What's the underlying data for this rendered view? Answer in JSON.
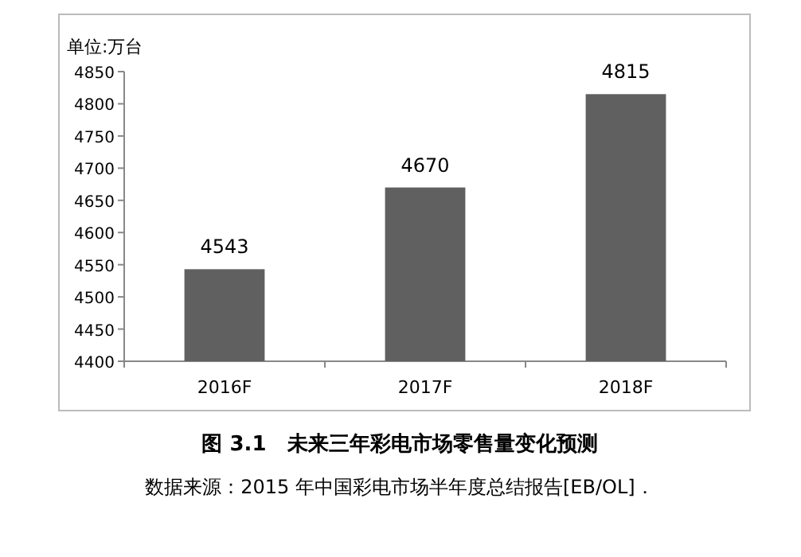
{
  "chart_data": {
    "type": "bar",
    "title": "图 3.1　未来三年彩电市场零售量变化预测",
    "ylabel": "单位:万台",
    "categories": [
      "2016F",
      "2017F",
      "2018F"
    ],
    "values": [
      4543,
      4670,
      4815
    ],
    "color": "#606060",
    "ylim": [
      4400,
      4850
    ],
    "yticks": [
      4400,
      4450,
      4500,
      4550,
      4600,
      4650,
      4700,
      4750,
      4800,
      4850
    ],
    "data_labels": true,
    "annotations": [
      "数据来源：2015 年中国彩电市场半年度总结报告[EB/OL]．"
    ]
  }
}
